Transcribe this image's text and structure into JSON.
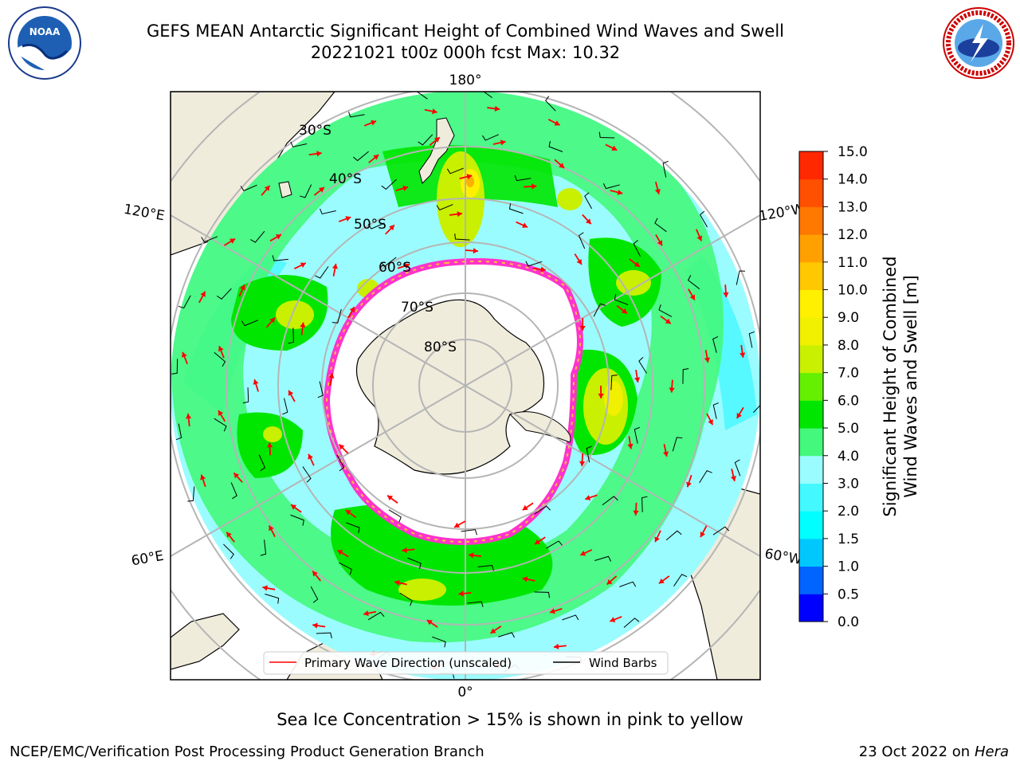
{
  "title_line1": "GEFS MEAN Antarctic Significant Height of Combined Wind Waves and Swell",
  "title_line2": "20221021 t00z 000h fcst   Max: 10.32",
  "map": {
    "meridian_labels": {
      "top": "180°",
      "bottom": "0°",
      "upper_left": "120°E",
      "upper_right": "120°W",
      "lower_left": "60°E",
      "lower_right": "60°W"
    },
    "latitude_labels": [
      "30°S",
      "40°S",
      "50°S",
      "60°S",
      "70°S",
      "80°S"
    ],
    "colors": {
      "land": "#efecdc",
      "ocean_low": "#9bfcff",
      "ocean_mid": "#44f87c",
      "green": "#00e600",
      "yellow_green": "#c8f000",
      "yellow": "#fff000",
      "orange": "#ffb000",
      "ice_pink": "#ff33cc",
      "ice_yellow": "#ffc040",
      "grid": "#b5b5b5",
      "arrow": "#ff0000",
      "barb": "#000000"
    }
  },
  "legend": {
    "primary_wave_label": "Primary Wave Direction (unscaled)",
    "wind_barb_label": "Wind Barbs"
  },
  "colorbar": {
    "label_line1": "Significant Height of Combined",
    "label_line2": "Wind Waves and Swell [m]",
    "ticks": [
      "0.0",
      "0.5",
      "1.0",
      "1.5",
      "2.0",
      "3.0",
      "4.0",
      "5.0",
      "6.0",
      "7.0",
      "8.0",
      "9.0",
      "10.0",
      "11.0",
      "12.0",
      "13.0",
      "14.0",
      "15.0"
    ],
    "colors": [
      "#0000ff",
      "#0064ff",
      "#00c8ff",
      "#00ffff",
      "#44f8ff",
      "#9bfcff",
      "#44f87c",
      "#00e600",
      "#64f000",
      "#c8f000",
      "#f0f000",
      "#fff000",
      "#ffc800",
      "#ffa000",
      "#ff7800",
      "#ff5000",
      "#ff2800"
    ]
  },
  "caption": "Sea Ice Concentration > 15% is shown in pink to yellow",
  "footer": {
    "left": "NCEP/EMC/Verification Post Processing Product Generation Branch",
    "date": "23 Oct 2022 on",
    "host": "Hera"
  },
  "logos": {
    "noaa_text": "NOAA",
    "noaa_icon": "noaa-seal-icon",
    "nws_icon": "nws-seal-icon"
  }
}
